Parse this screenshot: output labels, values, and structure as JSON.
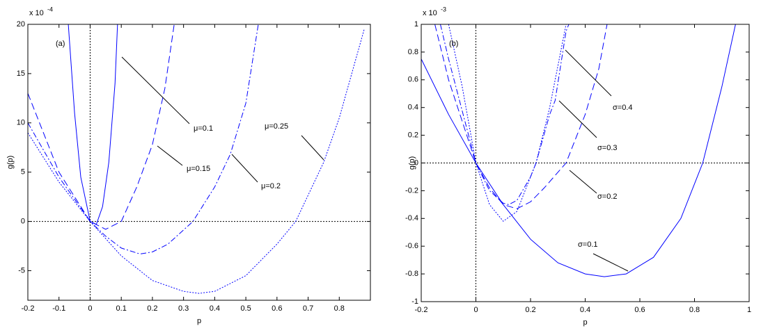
{
  "chart_data": [
    {
      "type": "line",
      "panel_label": "(a)",
      "x_label": "p",
      "y_label": "g(p)",
      "multiplier": {
        "base": "x 10",
        "exponent": "-4"
      },
      "xlim": [
        -0.2,
        0.9
      ],
      "xticks": [
        -0.2,
        -0.1,
        0,
        0.1,
        0.2,
        0.3,
        0.4,
        0.5,
        0.6,
        0.7,
        0.8
      ],
      "ylim": [
        -8,
        20
      ],
      "yticks": [
        -5,
        0,
        5,
        10,
        15,
        20
      ],
      "zero_lines": true,
      "series": [
        {
          "name": "μ=0.1",
          "color": "#0000ff",
          "style": "solid",
          "x": [
            -0.07,
            -0.05,
            -0.03,
            0,
            0.02,
            0.04,
            0.06,
            0.08,
            0.088
          ],
          "values": [
            20,
            11,
            4.5,
            0,
            -0.3,
            1.5,
            6,
            14,
            20
          ]
        },
        {
          "name": "μ=0.15",
          "color": "#0000ff",
          "style": "dashed",
          "x": [
            -0.2,
            -0.1,
            0,
            0.05,
            0.1,
            0.15,
            0.2,
            0.24,
            0.27
          ],
          "values": [
            13,
            5,
            0,
            -0.8,
            0,
            3.5,
            7.8,
            13.5,
            20
          ]
        },
        {
          "name": "μ=0.2",
          "color": "#0000ff",
          "style": "dashdot",
          "x": [
            -0.2,
            -0.1,
            0,
            0.05,
            0.1,
            0.16,
            0.2,
            0.25,
            0.33,
            0.4,
            0.45,
            0.5,
            0.54
          ],
          "values": [
            10,
            4.5,
            0,
            -1.5,
            -2.7,
            -3.3,
            -3.1,
            -2.3,
            0,
            3.5,
            6.8,
            12,
            20
          ]
        },
        {
          "name": "μ=0.25",
          "color": "#0000ff",
          "style": "dotted",
          "x": [
            -0.2,
            -0.1,
            0,
            0.1,
            0.2,
            0.3,
            0.35,
            0.4,
            0.5,
            0.6,
            0.66,
            0.75,
            0.8,
            0.88
          ],
          "values": [
            9,
            4,
            0,
            -3.5,
            -6,
            -7.1,
            -7.3,
            -7.1,
            -5.5,
            -2.3,
            0,
            6,
            10.5,
            19.5
          ]
        }
      ]
    },
    {
      "type": "line",
      "panel_label": "(b)",
      "x_label": "p",
      "y_label": "g(p)",
      "multiplier": {
        "base": "x 10",
        "exponent": "-3"
      },
      "xlim": [
        -0.2,
        1
      ],
      "xticks": [
        -0.2,
        0,
        0.2,
        0.4,
        0.6,
        0.8,
        1
      ],
      "ylim": [
        -1,
        1
      ],
      "yticks": [
        -1,
        -0.8,
        -0.6,
        -0.4,
        -0.2,
        0,
        0.2,
        0.4,
        0.6,
        0.8,
        1
      ],
      "zero_lines": true,
      "series": [
        {
          "name": "σ=0.1",
          "color": "#0000ff",
          "style": "solid",
          "x": [
            -0.2,
            -0.1,
            0,
            0.1,
            0.2,
            0.3,
            0.4,
            0.47,
            0.55,
            0.65,
            0.75,
            0.83,
            0.9,
            0.95
          ],
          "values": [
            0.75,
            0.35,
            0,
            -0.3,
            -0.55,
            -0.72,
            -0.8,
            -0.82,
            -0.8,
            -0.68,
            -0.4,
            0,
            0.55,
            1
          ]
        },
        {
          "name": "σ=0.2",
          "color": "#0000ff",
          "style": "dashed",
          "x": [
            -0.15,
            -0.1,
            0,
            0.05,
            0.1,
            0.15,
            0.2,
            0.25,
            0.33,
            0.4,
            0.45,
            0.48
          ],
          "values": [
            1,
            0.6,
            0,
            -0.18,
            -0.3,
            -0.33,
            -0.28,
            -0.18,
            0,
            0.35,
            0.68,
            1
          ]
        },
        {
          "name": "σ=0.3",
          "color": "#0000ff",
          "style": "dashdot",
          "x": [
            -0.13,
            -0.1,
            0,
            0.05,
            0.1,
            0.12,
            0.15,
            0.2,
            0.22,
            0.27,
            0.29,
            0.33,
            0.34
          ],
          "values": [
            1,
            0.75,
            0,
            -0.2,
            -0.29,
            -0.3,
            -0.27,
            -0.1,
            0,
            0.35,
            0.45,
            0.95,
            1
          ]
        },
        {
          "name": "σ=0.4",
          "color": "#0000ff",
          "style": "dotted",
          "x": [
            -0.1,
            -0.05,
            0,
            0.05,
            0.1,
            0.15,
            0.2,
            0.22,
            0.27,
            0.31,
            0.33
          ],
          "values": [
            1,
            0.55,
            0,
            -0.3,
            -0.42,
            -0.35,
            -0.1,
            0,
            0.4,
            0.8,
            1
          ]
        }
      ]
    }
  ]
}
